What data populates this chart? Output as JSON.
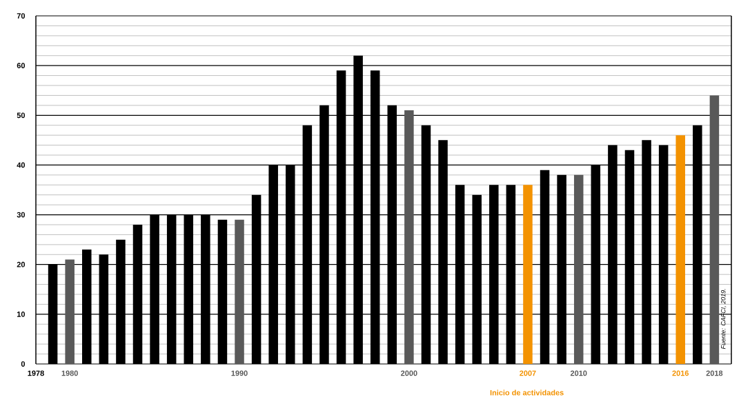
{
  "chart_data": {
    "type": "bar",
    "x": [
      1979,
      1980,
      1981,
      1982,
      1983,
      1984,
      1985,
      1986,
      1987,
      1988,
      1989,
      1990,
      1991,
      1992,
      1993,
      1994,
      1995,
      1996,
      1997,
      1998,
      1999,
      2000,
      2001,
      2002,
      2003,
      2004,
      2005,
      2006,
      2007,
      2008,
      2009,
      2010,
      2011,
      2012,
      2013,
      2014,
      2015,
      2016,
      2017,
      2018
    ],
    "values": [
      20,
      21,
      23,
      22,
      25,
      28,
      30,
      30,
      30,
      30,
      29,
      29,
      34,
      40,
      40,
      48,
      52,
      59,
      62,
      59,
      52,
      51,
      48,
      45,
      36,
      34,
      36,
      36,
      36,
      39,
      38,
      38,
      40,
      44,
      43,
      45,
      44,
      46,
      48,
      54
    ],
    "colors": [
      "#000000",
      "#595959",
      "#000000",
      "#000000",
      "#000000",
      "#000000",
      "#000000",
      "#000000",
      "#000000",
      "#000000",
      "#000000",
      "#595959",
      "#000000",
      "#000000",
      "#000000",
      "#000000",
      "#000000",
      "#000000",
      "#000000",
      "#000000",
      "#000000",
      "#595959",
      "#000000",
      "#000000",
      "#000000",
      "#000000",
      "#000000",
      "#000000",
      "#f39200",
      "#000000",
      "#000000",
      "#595959",
      "#000000",
      "#000000",
      "#000000",
      "#000000",
      "#000000",
      "#f39200",
      "#000000",
      "#595959"
    ],
    "xlim": [
      1978,
      2019
    ],
    "xticks": [
      1978,
      1980,
      1990,
      2000,
      2007,
      2010,
      2016,
      2018
    ],
    "ylim": [
      0,
      70
    ],
    "yticks": [
      0,
      10,
      20,
      30,
      40,
      50,
      60,
      70
    ],
    "grid": "y",
    "annotations": [
      "Inicio de actividades",
      "Fuente: CAFCI, 2019."
    ]
  }
}
